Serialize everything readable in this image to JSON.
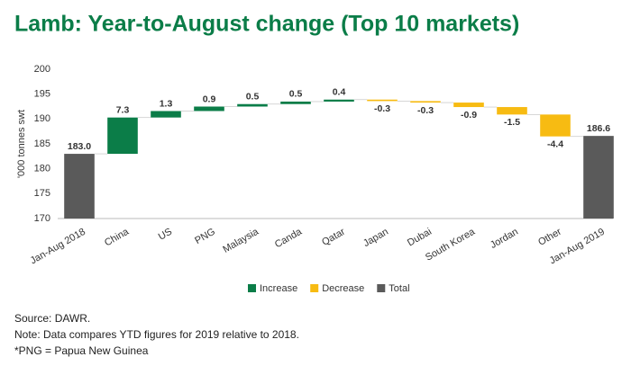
{
  "chart_data": {
    "type": "waterfall",
    "title": "Lamb: Year-to-August change (Top 10 markets)",
    "y_label": "'000 tonnes swt",
    "categories": [
      "Jan-Aug 2018",
      "China",
      "US",
      "PNG",
      "Malaysia",
      "Canda",
      "Qatar",
      "Japan",
      "Dubai",
      "South Korea",
      "Jordan",
      "Other",
      "Jan-Aug 2019"
    ],
    "values": [
      183.0,
      7.3,
      1.3,
      0.9,
      0.5,
      0.5,
      0.4,
      -0.3,
      -0.3,
      -0.9,
      -1.5,
      -4.4,
      186.6
    ],
    "value_labels": [
      "183.0",
      "7.3",
      "1.3",
      "0.9",
      "0.5",
      "0.5",
      "0.4",
      "-0.3",
      "-0.3",
      "-0.9",
      "-1.5",
      "-4.4",
      "186.6"
    ],
    "ylim": [
      170,
      200
    ],
    "yticks": [
      170,
      175,
      180,
      185,
      190,
      195,
      200
    ],
    "legend": [
      {
        "name": "Increase",
        "color": "#0b7d48"
      },
      {
        "name": "Decrease",
        "color": "#f7bb12"
      },
      {
        "name": "Total",
        "color": "#5a5a5a"
      }
    ],
    "notes": [
      "Source: DAWR.",
      "Note: Data compares YTD figures for 2019 relative to 2018.",
      "*PNG = Papua New Guinea"
    ]
  }
}
